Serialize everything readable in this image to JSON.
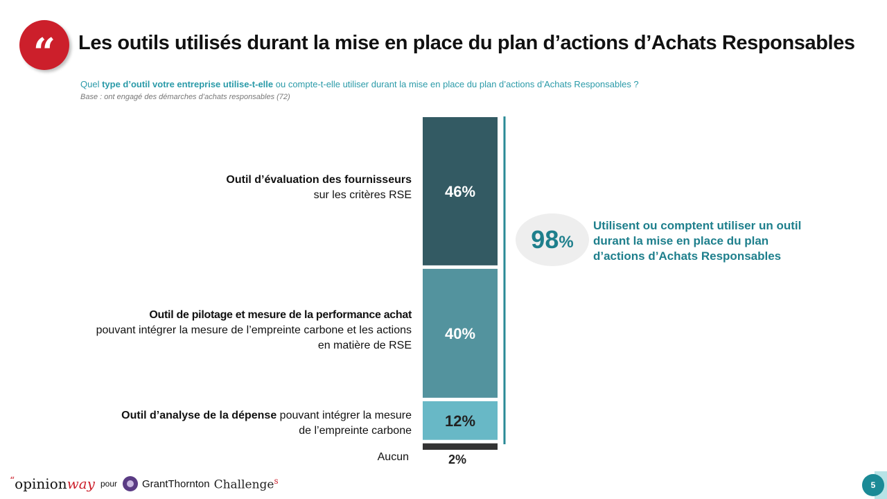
{
  "header": {
    "title": "Les outils utilisés durant la mise en place du plan d’actions d’Achats Responsables",
    "question_pre": "Quel ",
    "question_bold": "type d’outil votre entreprise utilise-t-elle",
    "question_post": "  ou compte-t-elle utiliser durant la mise en place du plan d’actions d’Achats Responsables ?",
    "base": "Base : ont engagé des démarches d’achats responsables  (72)"
  },
  "labels": [
    {
      "bold": "Outil d’évaluation des fournisseurs",
      "rest": "sur les critères RSE"
    },
    {
      "bold": "Outil de pilotage et mesure de la performance achat",
      "rest": "pouvant intégrer la mesure de l’empreinte carbone et les actions en matière de RSE"
    },
    {
      "bold": "Outil d’analyse de la dépense",
      "rest": " pouvant intégrer la mesure de l’empreinte carbone"
    },
    {
      "bold": "",
      "rest": "Aucun"
    }
  ],
  "chart_data": {
    "type": "bar",
    "layout": "stacked-vertical",
    "categories": [
      "Outil d’évaluation des fournisseurs sur les critères RSE",
      "Outil de pilotage et mesure de la performance achat pouvant intégrer la mesure de l’empreinte carbone et les actions en matière de RSE",
      "Outil d’analyse de la dépense pouvant intégrer la mesure de l’empreinte carbone",
      "Aucun"
    ],
    "values": [
      46,
      40,
      12,
      2
    ],
    "value_labels": [
      "46%",
      "40%",
      "12%",
      "2%"
    ],
    "colors": [
      "#335a63",
      "#53939e",
      "#68b8c6",
      "#333333"
    ],
    "unit": "%"
  },
  "kpi": {
    "value": "98",
    "unit": "%",
    "text": "Utilisent ou comptent utiliser un outil durant la mise en place du plan d’actions d’Achats Responsables"
  },
  "footer": {
    "quote_mark": "“",
    "opinion": "opinion",
    "way": "way",
    "pour": "pour",
    "grant_thornton": "GrantThornton",
    "challenges": "Challenge",
    "challenges_s": "s",
    "page_number": "5"
  }
}
